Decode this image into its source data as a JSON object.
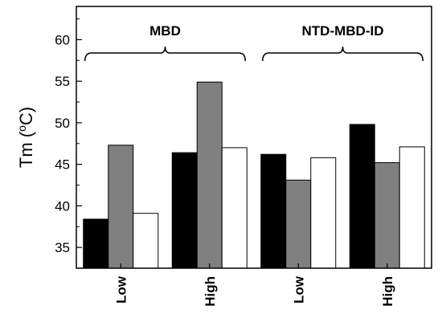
{
  "chart_data": {
    "type": "bar",
    "ylabel": {
      "main": "Tm (",
      "sup": "o",
      "unit": "C)"
    },
    "ylim": [
      32.5,
      64
    ],
    "yticks": [
      35,
      40,
      45,
      50,
      55,
      60
    ],
    "groups": [
      {
        "label": "MBD",
        "categories": [
          "Low",
          "High"
        ]
      },
      {
        "label": "NTD-MBD-ID",
        "categories": [
          "Low",
          "High"
        ]
      }
    ],
    "categories": [
      "Low",
      "High",
      "Low",
      "High"
    ],
    "series": [
      {
        "color": "#000000",
        "values": [
          38.4,
          46.4,
          46.2,
          49.8
        ]
      },
      {
        "color": "#808080",
        "values": [
          47.3,
          54.9,
          43.1,
          45.2
        ]
      },
      {
        "color": "#ffffff",
        "values": [
          39.1,
          47.0,
          45.8,
          47.1
        ]
      }
    ],
    "grid": false,
    "legend": "none"
  }
}
